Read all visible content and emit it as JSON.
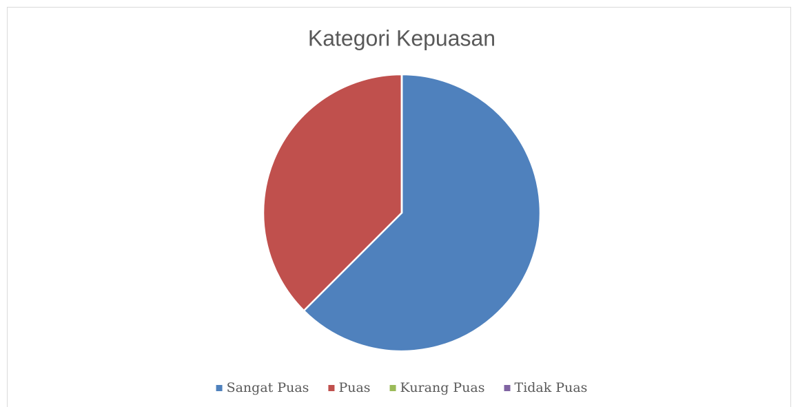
{
  "chart_data": {
    "type": "pie",
    "title": "Kategori Kepuasan",
    "categories": [
      "Sangat Puas",
      "Puas",
      "Kurang Puas",
      "Tidak Puas"
    ],
    "values": [
      62.5,
      37.5,
      0,
      0
    ],
    "colors": [
      "#4f81bd",
      "#c0504d",
      "#9bbb59",
      "#8064a2"
    ],
    "legend": "bottom"
  }
}
